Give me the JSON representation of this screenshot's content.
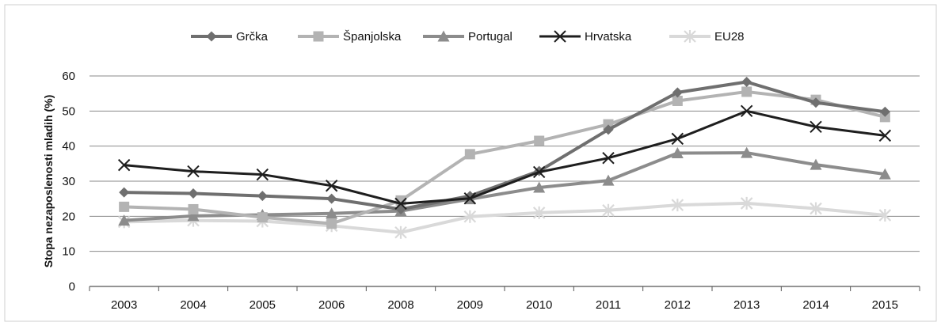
{
  "chart_data": {
    "type": "line",
    "title": "",
    "xlabel": "",
    "ylabel": "Stopa nezaposlenosti mladih (%)",
    "ylim": [
      0,
      60
    ],
    "yticks": [
      0,
      10,
      20,
      30,
      40,
      50,
      60
    ],
    "grid": true,
    "legend_position": "top",
    "categories": [
      "2003",
      "2004",
      "2005",
      "2006",
      "2008",
      "2009",
      "2010",
      "2011",
      "2012",
      "2013",
      "2014",
      "2015"
    ],
    "series": [
      {
        "name": "Grčka",
        "color": "#6f6f6f",
        "marker": "diamond",
        "width": 4,
        "values": [
          26.8,
          26.5,
          25.8,
          25.0,
          22.0,
          25.8,
          32.9,
          44.7,
          55.3,
          58.3,
          52.4,
          49.8
        ]
      },
      {
        "name": "Španjolska",
        "color": "#b3b3b3",
        "marker": "square",
        "width": 4,
        "values": [
          22.7,
          22.0,
          19.7,
          17.9,
          24.5,
          37.7,
          41.5,
          46.2,
          52.9,
          55.5,
          53.2,
          48.3
        ]
      },
      {
        "name": "Portugal",
        "color": "#8c8c8c",
        "marker": "triangle",
        "width": 4,
        "values": [
          18.8,
          20.1,
          20.4,
          20.8,
          21.5,
          24.9,
          28.2,
          30.2,
          38.0,
          38.1,
          34.7,
          32.0
        ]
      },
      {
        "name": "Hrvatska",
        "color": "#1e1e1e",
        "marker": "x",
        "width": 3,
        "values": [
          34.6,
          32.8,
          31.9,
          28.7,
          23.6,
          25.1,
          32.6,
          36.6,
          42.1,
          50.0,
          45.5,
          43.0
        ]
      },
      {
        "name": "EU28",
        "color": "#d9d9d9",
        "marker": "asterisk",
        "width": 4,
        "values": [
          18.4,
          18.8,
          18.6,
          17.3,
          15.4,
          19.9,
          21.0,
          21.7,
          23.2,
          23.7,
          22.2,
          20.3
        ]
      }
    ]
  }
}
